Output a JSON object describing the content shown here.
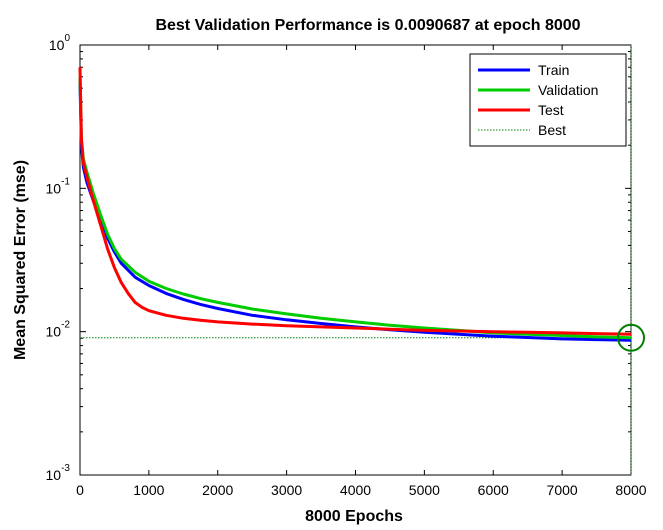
{
  "chart_data": {
    "type": "line",
    "title": "Best Validation Performance is 0.0090687 at epoch 8000",
    "xlabel": "8000 Epochs",
    "ylabel": "Mean Squared Error  (mse)",
    "xlim": [
      0,
      8000
    ],
    "ylim": [
      0.001,
      1
    ],
    "y_scale": "log",
    "x_ticks": [
      "0",
      "1000",
      "2000",
      "3000",
      "4000",
      "5000",
      "6000",
      "7000",
      "8000"
    ],
    "y_ticks": [
      {
        "base": "10",
        "exp": "-3"
      },
      {
        "base": "10",
        "exp": "-2"
      },
      {
        "base": "10",
        "exp": "-1"
      },
      {
        "base": "10",
        "exp": "0"
      }
    ],
    "grid": false,
    "legend_position": "top-right",
    "series": [
      {
        "name": "Train",
        "color": "#0000ff",
        "x": [
          0,
          20,
          50,
          100,
          200,
          300,
          400,
          500,
          600,
          800,
          1000,
          1250,
          1500,
          1750,
          2000,
          2500,
          3000,
          3500,
          4000,
          4500,
          5000,
          5500,
          6000,
          6500,
          7000,
          7500,
          8000
        ],
        "y": [
          0.55,
          0.2,
          0.14,
          0.11,
          0.08,
          0.06,
          0.045,
          0.036,
          0.03,
          0.024,
          0.021,
          0.0185,
          0.0168,
          0.0155,
          0.0145,
          0.013,
          0.0121,
          0.0114,
          0.0108,
          0.0103,
          0.0099,
          0.0096,
          0.0093,
          0.0091,
          0.0089,
          0.0088,
          0.0087
        ]
      },
      {
        "name": "Validation",
        "color": "#00cc00",
        "x": [
          0,
          20,
          50,
          100,
          200,
          300,
          400,
          500,
          600,
          800,
          1000,
          1250,
          1500,
          1750,
          2000,
          2500,
          3000,
          3500,
          4000,
          4500,
          5000,
          5500,
          6000,
          6500,
          7000,
          7500,
          8000
        ],
        "y": [
          0.6,
          0.22,
          0.16,
          0.13,
          0.09,
          0.065,
          0.048,
          0.038,
          0.032,
          0.026,
          0.0225,
          0.02,
          0.0183,
          0.017,
          0.016,
          0.0144,
          0.0133,
          0.0124,
          0.0117,
          0.0111,
          0.0106,
          0.0102,
          0.0098,
          0.0096,
          0.0094,
          0.0092,
          0.0090687
        ]
      },
      {
        "name": "Test",
        "color": "#ff0000",
        "x": [
          0,
          20,
          50,
          100,
          200,
          300,
          400,
          500,
          600,
          700,
          800,
          900,
          1000,
          1250,
          1500,
          1750,
          2000,
          2500,
          3000,
          3500,
          4000,
          4500,
          5000,
          5500,
          6000,
          6500,
          7000,
          7500,
          8000
        ],
        "y": [
          0.7,
          0.22,
          0.15,
          0.12,
          0.08,
          0.055,
          0.038,
          0.028,
          0.022,
          0.0185,
          0.016,
          0.0148,
          0.014,
          0.013,
          0.0124,
          0.012,
          0.0117,
          0.0113,
          0.011,
          0.0108,
          0.0106,
          0.0104,
          0.0102,
          0.0101,
          0.01,
          0.0099,
          0.0098,
          0.0097,
          0.0096
        ]
      }
    ],
    "best": {
      "name": "Best",
      "epoch": 8000,
      "value": 0.0090687,
      "color": "#008000"
    }
  }
}
